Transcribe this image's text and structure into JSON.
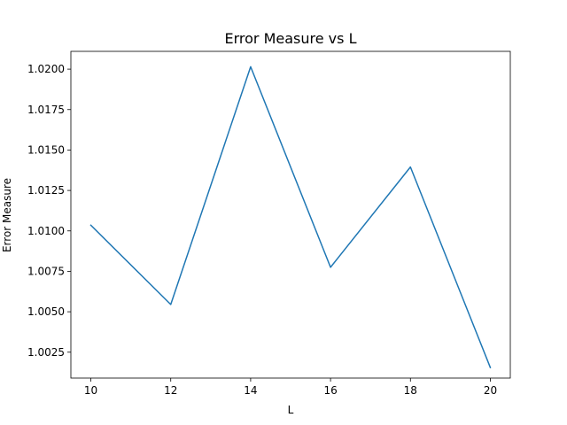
{
  "chart_data": {
    "type": "line",
    "title": "Error Measure vs L",
    "xlabel": "L",
    "ylabel": "Error Measure",
    "x": [
      10,
      12,
      14,
      16,
      18,
      20
    ],
    "series": [
      {
        "values": [
          1.01035,
          1.00545,
          1.02015,
          1.00775,
          1.01395,
          1.00155
        ],
        "color": "#1f77b4"
      }
    ],
    "xlim": [
      9.5,
      20.5
    ],
    "ylim": [
      1.0009,
      1.0211
    ],
    "x_ticks": [
      10,
      12,
      14,
      16,
      18,
      20
    ],
    "x_tick_labels": [
      "10",
      "12",
      "14",
      "16",
      "18",
      "20"
    ],
    "y_ticks": [
      1.0025,
      1.005,
      1.0075,
      1.01,
      1.0125,
      1.015,
      1.0175,
      1.02
    ],
    "y_tick_labels": [
      "1.0025",
      "1.0050",
      "1.0075",
      "1.0100",
      "1.0125",
      "1.0150",
      "1.0175",
      "1.0200"
    ],
    "grid": false,
    "legend": "none"
  }
}
